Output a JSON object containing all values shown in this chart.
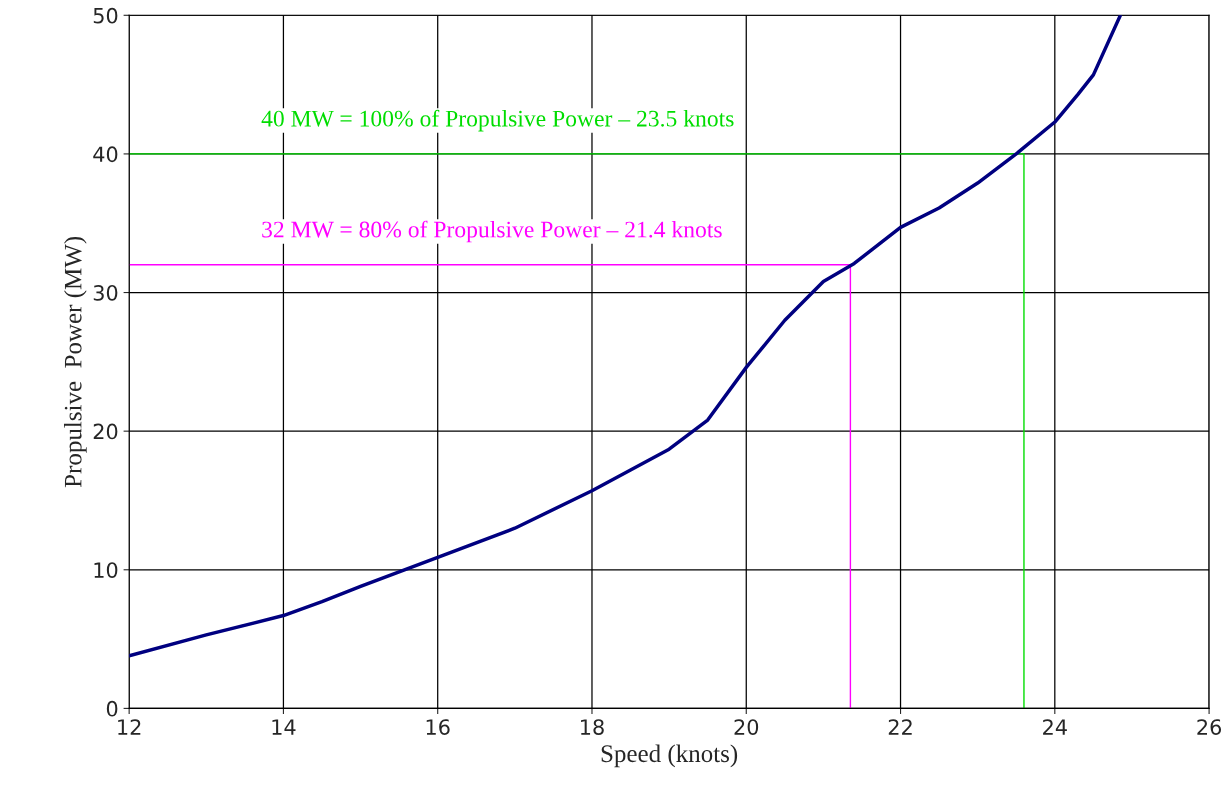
{
  "chart_data": {
    "type": "line",
    "xlabel": "Speed (knots)",
    "ylabel": "Propulsive  Power (MW)",
    "xlim": [
      12,
      26
    ],
    "xticks": [
      12,
      14,
      16,
      18,
      20,
      22,
      24,
      26
    ],
    "ylim": [
      0,
      50
    ],
    "yticks": [
      0,
      10,
      20,
      30,
      40,
      50
    ],
    "grid": true,
    "legend": false,
    "marker": "none",
    "line_style": "solid",
    "series": [
      {
        "color": "#000080",
        "x": [
          12,
          13,
          14,
          14.5,
          15,
          16,
          17,
          18,
          18.5,
          19,
          19.5,
          20,
          20.5,
          21,
          21.4,
          22,
          22.5,
          23,
          23.5,
          24,
          24.3,
          24.5,
          24.85
        ],
        "values": [
          3.8,
          5.3,
          6.7,
          7.7,
          8.8,
          10.9,
          13.0,
          15.7,
          17.2,
          18.7,
          20.8,
          24.6,
          28.0,
          30.8,
          32.1,
          34.7,
          36.1,
          37.9,
          40.0,
          42.3,
          44.3,
          45.7,
          50
        ]
      },
      {
        "color": "#00dd00",
        "x": [
          12,
          23.6,
          23.6
        ],
        "values": [
          40,
          40,
          0
        ]
      },
      {
        "color": "#ff00ff",
        "x": [
          12,
          21.35,
          21.35
        ],
        "values": [
          32,
          32,
          0
        ]
      }
    ],
    "annotations": [
      "40 MW = 100% of Propulsive Power – 23.5 knots",
      "32 MW = 80% of Propulsive Power – 21.4 knots"
    ]
  }
}
